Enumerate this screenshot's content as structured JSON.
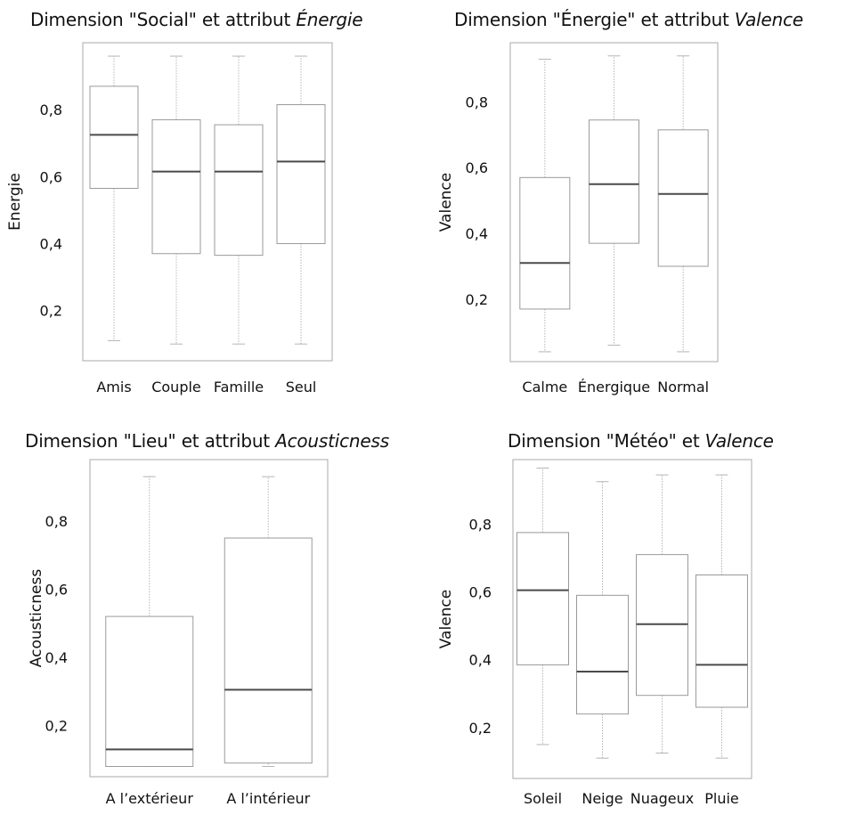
{
  "chart_data": [
    {
      "type": "box",
      "title": "Dimension \"Social\" et attribut ",
      "title_italic": "Énergie",
      "ylabel": "Energie",
      "xlabel": "",
      "ylim": [
        0.05,
        1.0
      ],
      "yticks": [
        "0,2",
        "0,4",
        "0,6",
        "0,8"
      ],
      "ytick_values": [
        0.2,
        0.4,
        0.6,
        0.8
      ],
      "grid": false,
      "categories": [
        "Amis",
        "Couple",
        "Famille",
        "Seul"
      ],
      "boxes": [
        {
          "min": 0.11,
          "q1": 0.565,
          "median": 0.725,
          "q3": 0.87,
          "max": 0.96
        },
        {
          "min": 0.1,
          "q1": 0.37,
          "median": 0.615,
          "q3": 0.77,
          "max": 0.96
        },
        {
          "min": 0.1,
          "q1": 0.365,
          "median": 0.615,
          "q3": 0.755,
          "max": 0.96
        },
        {
          "min": 0.1,
          "q1": 0.4,
          "median": 0.645,
          "q3": 0.815,
          "max": 0.96
        }
      ]
    },
    {
      "type": "box",
      "title": "Dimension \"Énergie\" et attribut ",
      "title_italic": "Valence",
      "ylabel": "Valence",
      "xlabel": "",
      "ylim": [
        0.01,
        0.98
      ],
      "yticks": [
        "0,2",
        "0,4",
        "0,6",
        "0,8"
      ],
      "ytick_values": [
        0.2,
        0.4,
        0.6,
        0.8
      ],
      "grid": false,
      "categories": [
        "Calme",
        "Énergique",
        "Normal"
      ],
      "boxes": [
        {
          "min": 0.04,
          "q1": 0.17,
          "median": 0.31,
          "q3": 0.57,
          "max": 0.93
        },
        {
          "min": 0.06,
          "q1": 0.37,
          "median": 0.55,
          "q3": 0.745,
          "max": 0.94
        },
        {
          "min": 0.04,
          "q1": 0.3,
          "median": 0.52,
          "q3": 0.715,
          "max": 0.94
        }
      ]
    },
    {
      "type": "box",
      "title": "Dimension \"Lieu\" et attribut ",
      "title_italic": "Acousticness",
      "ylabel": "Acousticness",
      "xlabel": "",
      "ylim": [
        0.05,
        0.98
      ],
      "yticks": [
        "0,2",
        "0,4",
        "0,6",
        "0,8"
      ],
      "ytick_values": [
        0.2,
        0.4,
        0.6,
        0.8
      ],
      "grid": false,
      "categories": [
        "A l’extérieur",
        "A l’intérieur"
      ],
      "boxes": [
        {
          "min": 0.08,
          "q1": 0.08,
          "median": 0.13,
          "q3": 0.52,
          "max": 0.93
        },
        {
          "min": 0.08,
          "q1": 0.09,
          "median": 0.305,
          "q3": 0.75,
          "max": 0.93
        }
      ]
    },
    {
      "type": "box",
      "title": "Dimension \"Météo\" et ",
      "title_italic": "Valence",
      "ylabel": "Valence",
      "xlabel": "",
      "ylim": [
        0.05,
        0.99
      ],
      "yticks": [
        "0,2",
        "0,4",
        "0,6",
        "0,8"
      ],
      "ytick_values": [
        0.2,
        0.4,
        0.6,
        0.8
      ],
      "grid": false,
      "categories": [
        "Soleil",
        "Neige",
        "Nuageux",
        "Pluie"
      ],
      "boxes": [
        {
          "min": 0.15,
          "q1": 0.385,
          "median": 0.605,
          "q3": 0.775,
          "max": 0.965
        },
        {
          "min": 0.11,
          "q1": 0.24,
          "median": 0.365,
          "q3": 0.59,
          "max": 0.925
        },
        {
          "min": 0.125,
          "q1": 0.295,
          "median": 0.505,
          "q3": 0.71,
          "max": 0.945
        },
        {
          "min": 0.11,
          "q1": 0.26,
          "median": 0.385,
          "q3": 0.65,
          "max": 0.945
        }
      ]
    }
  ]
}
